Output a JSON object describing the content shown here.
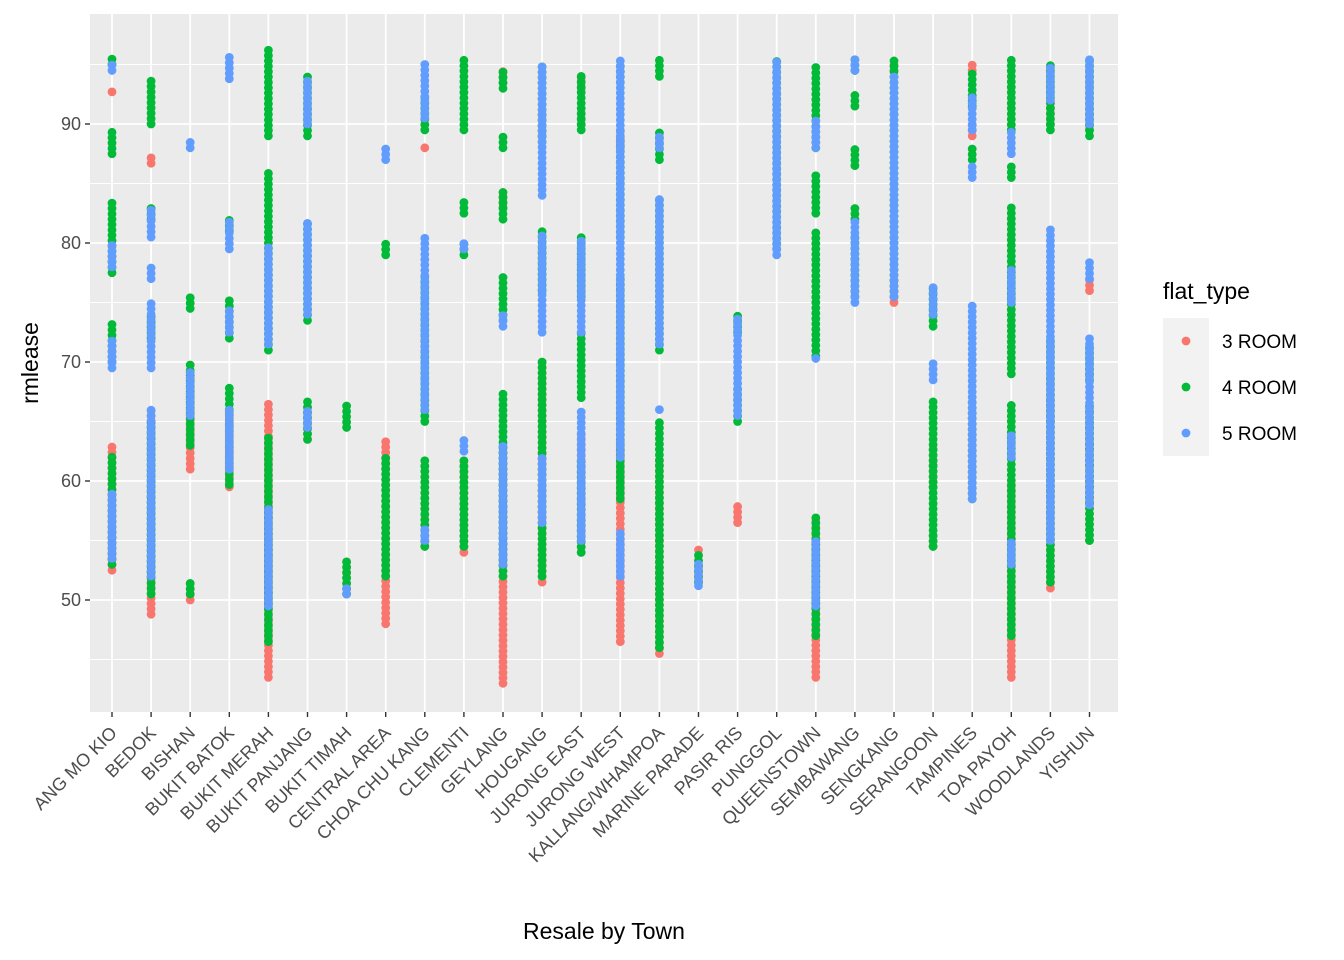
{
  "chart_data": {
    "type": "scatter",
    "xlabel": "Resale by Town",
    "ylabel": "rmlease",
    "ylim": [
      40.5,
      97.5
    ],
    "yticks": [
      50,
      60,
      70,
      80,
      90
    ],
    "yticks_text": [
      "50",
      "60",
      "70",
      "80",
      "90"
    ],
    "grid": true,
    "legend_position": "right",
    "legend_title": "flat_type",
    "categories": [
      "ANG MO KIO",
      "BEDOK",
      "BISHAN",
      "BUKIT BATOK",
      "BUKIT MERAH",
      "BUKIT PANJANG",
      "BUKIT TIMAH",
      "CENTRAL AREA",
      "CHOA CHU KANG",
      "CLEMENTI",
      "GEYLANG",
      "HOUGANG",
      "JURONG EAST",
      "JURONG WEST",
      "KALLANG/WHAMPOA",
      "MARINE PARADE",
      "PASIR RIS",
      "PUNGGOL",
      "QUEENSTOWN",
      "SEMBAWANG",
      "SENGKANG",
      "SERANGOON",
      "TAMPINES",
      "TOA PAYOH",
      "WOODLANDS",
      "YISHUN"
    ],
    "series": [
      {
        "name": "3 ROOM",
        "color": "#F8766D",
        "ranges": [
          [
            [
              52.5,
              63
            ],
            [
              92.7,
              92.9
            ]
          ],
          [
            [
              48.8,
              66
            ],
            [
              86.7,
              87.3
            ]
          ],
          [
            [
              50,
              51.5
            ],
            [
              61,
              69.5
            ]
          ],
          [
            [
              59.5,
              66
            ]
          ],
          [
            [
              43.5,
              66.8
            ]
          ],
          [
            [
              63.5,
              66.5
            ]
          ],
          [
            [
              50.5,
              53.5
            ]
          ],
          [
            [
              48,
              63.3
            ]
          ],
          [
            [
              54.5,
              61.5
            ],
            [
              88,
              88.3
            ]
          ],
          [
            [
              54,
              62
            ]
          ],
          [
            [
              43,
              63
            ],
            [
              83,
              84
            ],
            [
              93.5,
              94.5
            ]
          ],
          [
            [
              51.5,
              70
            ],
            [
              89,
              91
            ]
          ],
          [
            [
              54,
              64
            ],
            [
              90,
              91
            ],
            [
              93,
              94
            ]
          ],
          [
            [
              46.5,
              63.5
            ],
            [
              88,
              89.5
            ]
          ],
          [
            [
              45.5,
              62
            ]
          ],
          [
            [
              51.5,
              54.5
            ]
          ],
          [
            [
              56.5,
              58
            ]
          ],
          [],
          [
            [
              43.5,
              56.8
            ]
          ],
          [],
          [
            [
              75,
              77
            ],
            [
              94.5,
              95.3
            ]
          ],
          [
            [
              59.5,
              63
            ],
            [
              54.5,
              55.5
            ]
          ],
          [
            [
              58.5,
              66
            ],
            [
              89,
              90
            ],
            [
              94.5,
              95.2
            ]
          ],
          [
            [
              43.5,
              60
            ]
          ],
          [
            [
              51,
              67.5
            ],
            [
              90,
              92
            ]
          ],
          [
            [
              55,
              65
            ],
            [
              76,
              77
            ],
            [
              89.5,
              91
            ]
          ]
        ]
      },
      {
        "name": "4 ROOM",
        "color": "#00BA38",
        "ranges": [
          [
            [
              53,
              62
            ],
            [
              70,
              73.5
            ],
            [
              77.5,
              83.5
            ],
            [
              87.5,
              89.5
            ],
            [
              95,
              95.5
            ]
          ],
          [
            [
              50.5,
              65
            ],
            [
              72,
              74
            ],
            [
              82,
              83
            ],
            [
              90,
              94
            ]
          ],
          [
            [
              50.5,
              51.5
            ],
            [
              63,
              70
            ],
            [
              74.5,
              75.5
            ]
          ],
          [
            [
              59.7,
              68
            ],
            [
              72,
              75.5
            ],
            [
              81,
              82
            ]
          ],
          [
            [
              46.5,
              64
            ],
            [
              71,
              86
            ],
            [
              89,
              96.5
            ]
          ],
          [
            [
              63.5,
              67
            ],
            [
              73.5,
              82
            ],
            [
              89,
              94
            ]
          ],
          [
            [
              50.5,
              53.5
            ],
            [
              64.5,
              66.5
            ]
          ],
          [
            [
              52,
              62
            ],
            [
              79,
              80
            ]
          ],
          [
            [
              54.5,
              62
            ],
            [
              65,
              77.5
            ],
            [
              89.5,
              92.5
            ]
          ],
          [
            [
              54.5,
              62
            ],
            [
              79,
              80
            ],
            [
              82.5,
              83.5
            ],
            [
              89.5,
              95.5
            ]
          ],
          [
            [
              52,
              67.5
            ],
            [
              73.5,
              77.5
            ],
            [
              82,
              84.5
            ],
            [
              88,
              89
            ],
            [
              93,
              94.5
            ]
          ],
          [
            [
              52,
              70
            ],
            [
              76,
              81
            ],
            [
              88.5,
              95
            ]
          ],
          [
            [
              54,
              62
            ],
            [
              67,
              72.5
            ],
            [
              75.5,
              80.5
            ],
            [
              89.5,
              94
            ]
          ],
          [
            [
              58.5,
              77
            ],
            [
              80.5,
              89
            ],
            [
              93.5,
              95
            ]
          ],
          [
            [
              46,
              65
            ],
            [
              71,
              84
            ],
            [
              87,
              89.5
            ],
            [
              94,
              95.5
            ]
          ],
          [
            [
              51.5,
              54
            ]
          ],
          [
            [
              65,
              68
            ],
            [
              72.5,
              74
            ]
          ],
          [
            [
              79.5,
              95.5
            ]
          ],
          [
            [
              47,
              57
            ],
            [
              70.5,
              81
            ],
            [
              82.5,
              86
            ],
            [
              88,
              95
            ]
          ],
          [
            [
              75.5,
              80.5
            ],
            [
              82,
              83
            ],
            [
              86.5,
              88
            ],
            [
              91.5,
              92.5
            ],
            [
              94.5,
              95.5
            ]
          ],
          [
            [
              75.5,
              95.3
            ]
          ],
          [
            [
              54.5,
              67
            ],
            [
              73,
              76.5
            ]
          ],
          [
            [
              58.5,
              67
            ],
            [
              87,
              88
            ],
            [
              91.5,
              94.5
            ]
          ],
          [
            [
              47,
              66.5
            ],
            [
              69,
              83
            ],
            [
              85.5,
              86.5
            ],
            [
              89.5,
              95.5
            ]
          ],
          [
            [
              51.5,
              72
            ],
            [
              89.5,
              95
            ]
          ],
          [
            [
              55,
              66.5
            ],
            [
              68.5,
              71.5
            ],
            [
              89,
              95.5
            ]
          ]
        ]
      },
      {
        "name": "5 ROOM",
        "color": "#619CFF",
        "ranges": [
          [
            [
              53.5,
              59
            ],
            [
              69.5,
              72
            ],
            [
              78,
              80
            ],
            [
              94.5,
              95.2
            ]
          ],
          [
            [
              52,
              66
            ],
            [
              69.5,
              75
            ],
            [
              77,
              78
            ],
            [
              80.5,
              83
            ]
          ],
          [
            [
              65.5,
              69.5
            ],
            [
              88,
              88.7
            ]
          ],
          [
            [
              61,
              66
            ],
            [
              72.5,
              74.5
            ],
            [
              79.5,
              82
            ],
            [
              93.8,
              95.8
            ]
          ],
          [
            [
              49.5,
              58
            ],
            [
              71.5,
              80
            ]
          ],
          [
            [
              64.5,
              66
            ],
            [
              74,
              82
            ],
            [
              90,
              94
            ]
          ],
          [
            [
              50.5,
              51.2
            ]
          ],
          [
            [
              87,
              88.2
            ]
          ],
          [
            [
              55,
              56
            ],
            [
              66,
              80.5
            ],
            [
              90.5,
              95.3
            ]
          ],
          [
            [
              62.5,
              63.8
            ],
            [
              79.5,
              80.2
            ]
          ],
          [
            [
              53,
              63
            ],
            [
              73,
              74
            ]
          ],
          [
            [
              56.5,
              62
            ],
            [
              72.5,
              81
            ],
            [
              84,
              95
            ]
          ],
          [
            [
              55,
              66
            ],
            [
              72.5,
              80.5
            ]
          ],
          [
            [
              52,
              55.7
            ],
            [
              62,
              95.5
            ]
          ],
          [
            [
              66,
              66.2
            ],
            [
              71.5,
              84
            ],
            [
              88,
              89
            ]
          ],
          [
            [
              51.2,
              53
            ]
          ],
          [
            [
              65.5,
              74
            ]
          ],
          [
            [
              79,
              95.5
            ]
          ],
          [
            [
              49.5,
              55
            ],
            [
              70.3,
              70.7
            ],
            [
              88,
              90.5
            ]
          ],
          [
            [
              75,
              82
            ],
            [
              94.5,
              95.5
            ]
          ],
          [
            [
              75.5,
              94
            ]
          ],
          [
            [
              68.5,
              70
            ],
            [
              74,
              76.5
            ]
          ],
          [
            [
              58.5,
              75
            ],
            [
              85.5,
              86.5
            ],
            [
              89.5,
              92.5
            ]
          ],
          [
            [
              53,
              55
            ],
            [
              62,
              64
            ],
            [
              75,
              78
            ],
            [
              87.5,
              89.5
            ]
          ],
          [
            [
              55,
              81.5
            ],
            [
              92,
              95
            ]
          ],
          [
            [
              58,
              72
            ],
            [
              77,
              78.5
            ],
            [
              90,
              95.5
            ]
          ]
        ]
      }
    ]
  }
}
